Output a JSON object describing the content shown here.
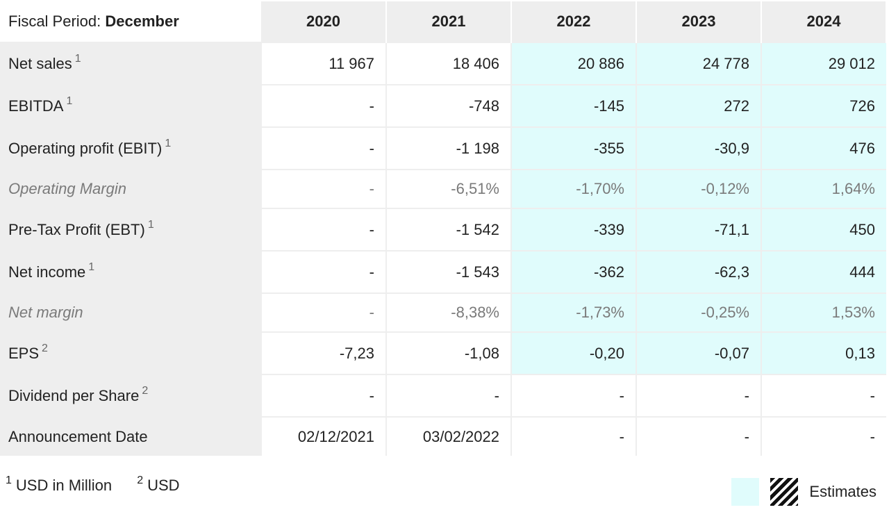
{
  "header": {
    "period_label": "Fiscal Period:",
    "period_value": "December",
    "years": [
      "2020",
      "2021",
      "2022",
      "2023",
      "2024"
    ]
  },
  "rows": [
    {
      "label": "Net sales",
      "note": "1",
      "values": [
        "11 967",
        "18 406",
        "20 886",
        "24 778",
        "29 012"
      ]
    },
    {
      "label": "EBITDA",
      "note": "1",
      "values": [
        "-",
        "-748",
        "-145",
        "272",
        "726"
      ]
    },
    {
      "label": "Operating profit (EBIT)",
      "note": "1",
      "values": [
        "-",
        "-1 198",
        "-355",
        "-30,9",
        "476"
      ]
    },
    {
      "label": "Operating Margin",
      "note": "",
      "values": [
        "-",
        "-6,51%",
        "-1,70%",
        "-0,12%",
        "1,64%"
      ]
    },
    {
      "label": "Pre-Tax Profit (EBT)",
      "note": "1",
      "values": [
        "-",
        "-1 542",
        "-339",
        "-71,1",
        "450"
      ]
    },
    {
      "label": "Net income",
      "note": "1",
      "values": [
        "-",
        "-1 543",
        "-362",
        "-62,3",
        "444"
      ]
    },
    {
      "label": "Net margin",
      "note": "",
      "values": [
        "-",
        "-8,38%",
        "-1,73%",
        "-0,25%",
        "1,53%"
      ]
    },
    {
      "label": "EPS",
      "note": "2",
      "values": [
        "-7,23",
        "-1,08",
        "-0,20",
        "-0,07",
        "0,13"
      ]
    },
    {
      "label": "Dividend per Share",
      "note": "2",
      "values": [
        "-",
        "-",
        "-",
        "-",
        "-"
      ]
    },
    {
      "label": "Announcement Date",
      "note": "",
      "values": [
        "02/12/2021",
        "03/02/2022",
        "-",
        "-",
        "-"
      ]
    }
  ],
  "footnotes": [
    {
      "mark": "1",
      "text": "USD in Million"
    },
    {
      "mark": "2",
      "text": "USD"
    }
  ],
  "legend": {
    "label": "Estimates",
    "estimate_color": "#e0fcfc"
  }
}
